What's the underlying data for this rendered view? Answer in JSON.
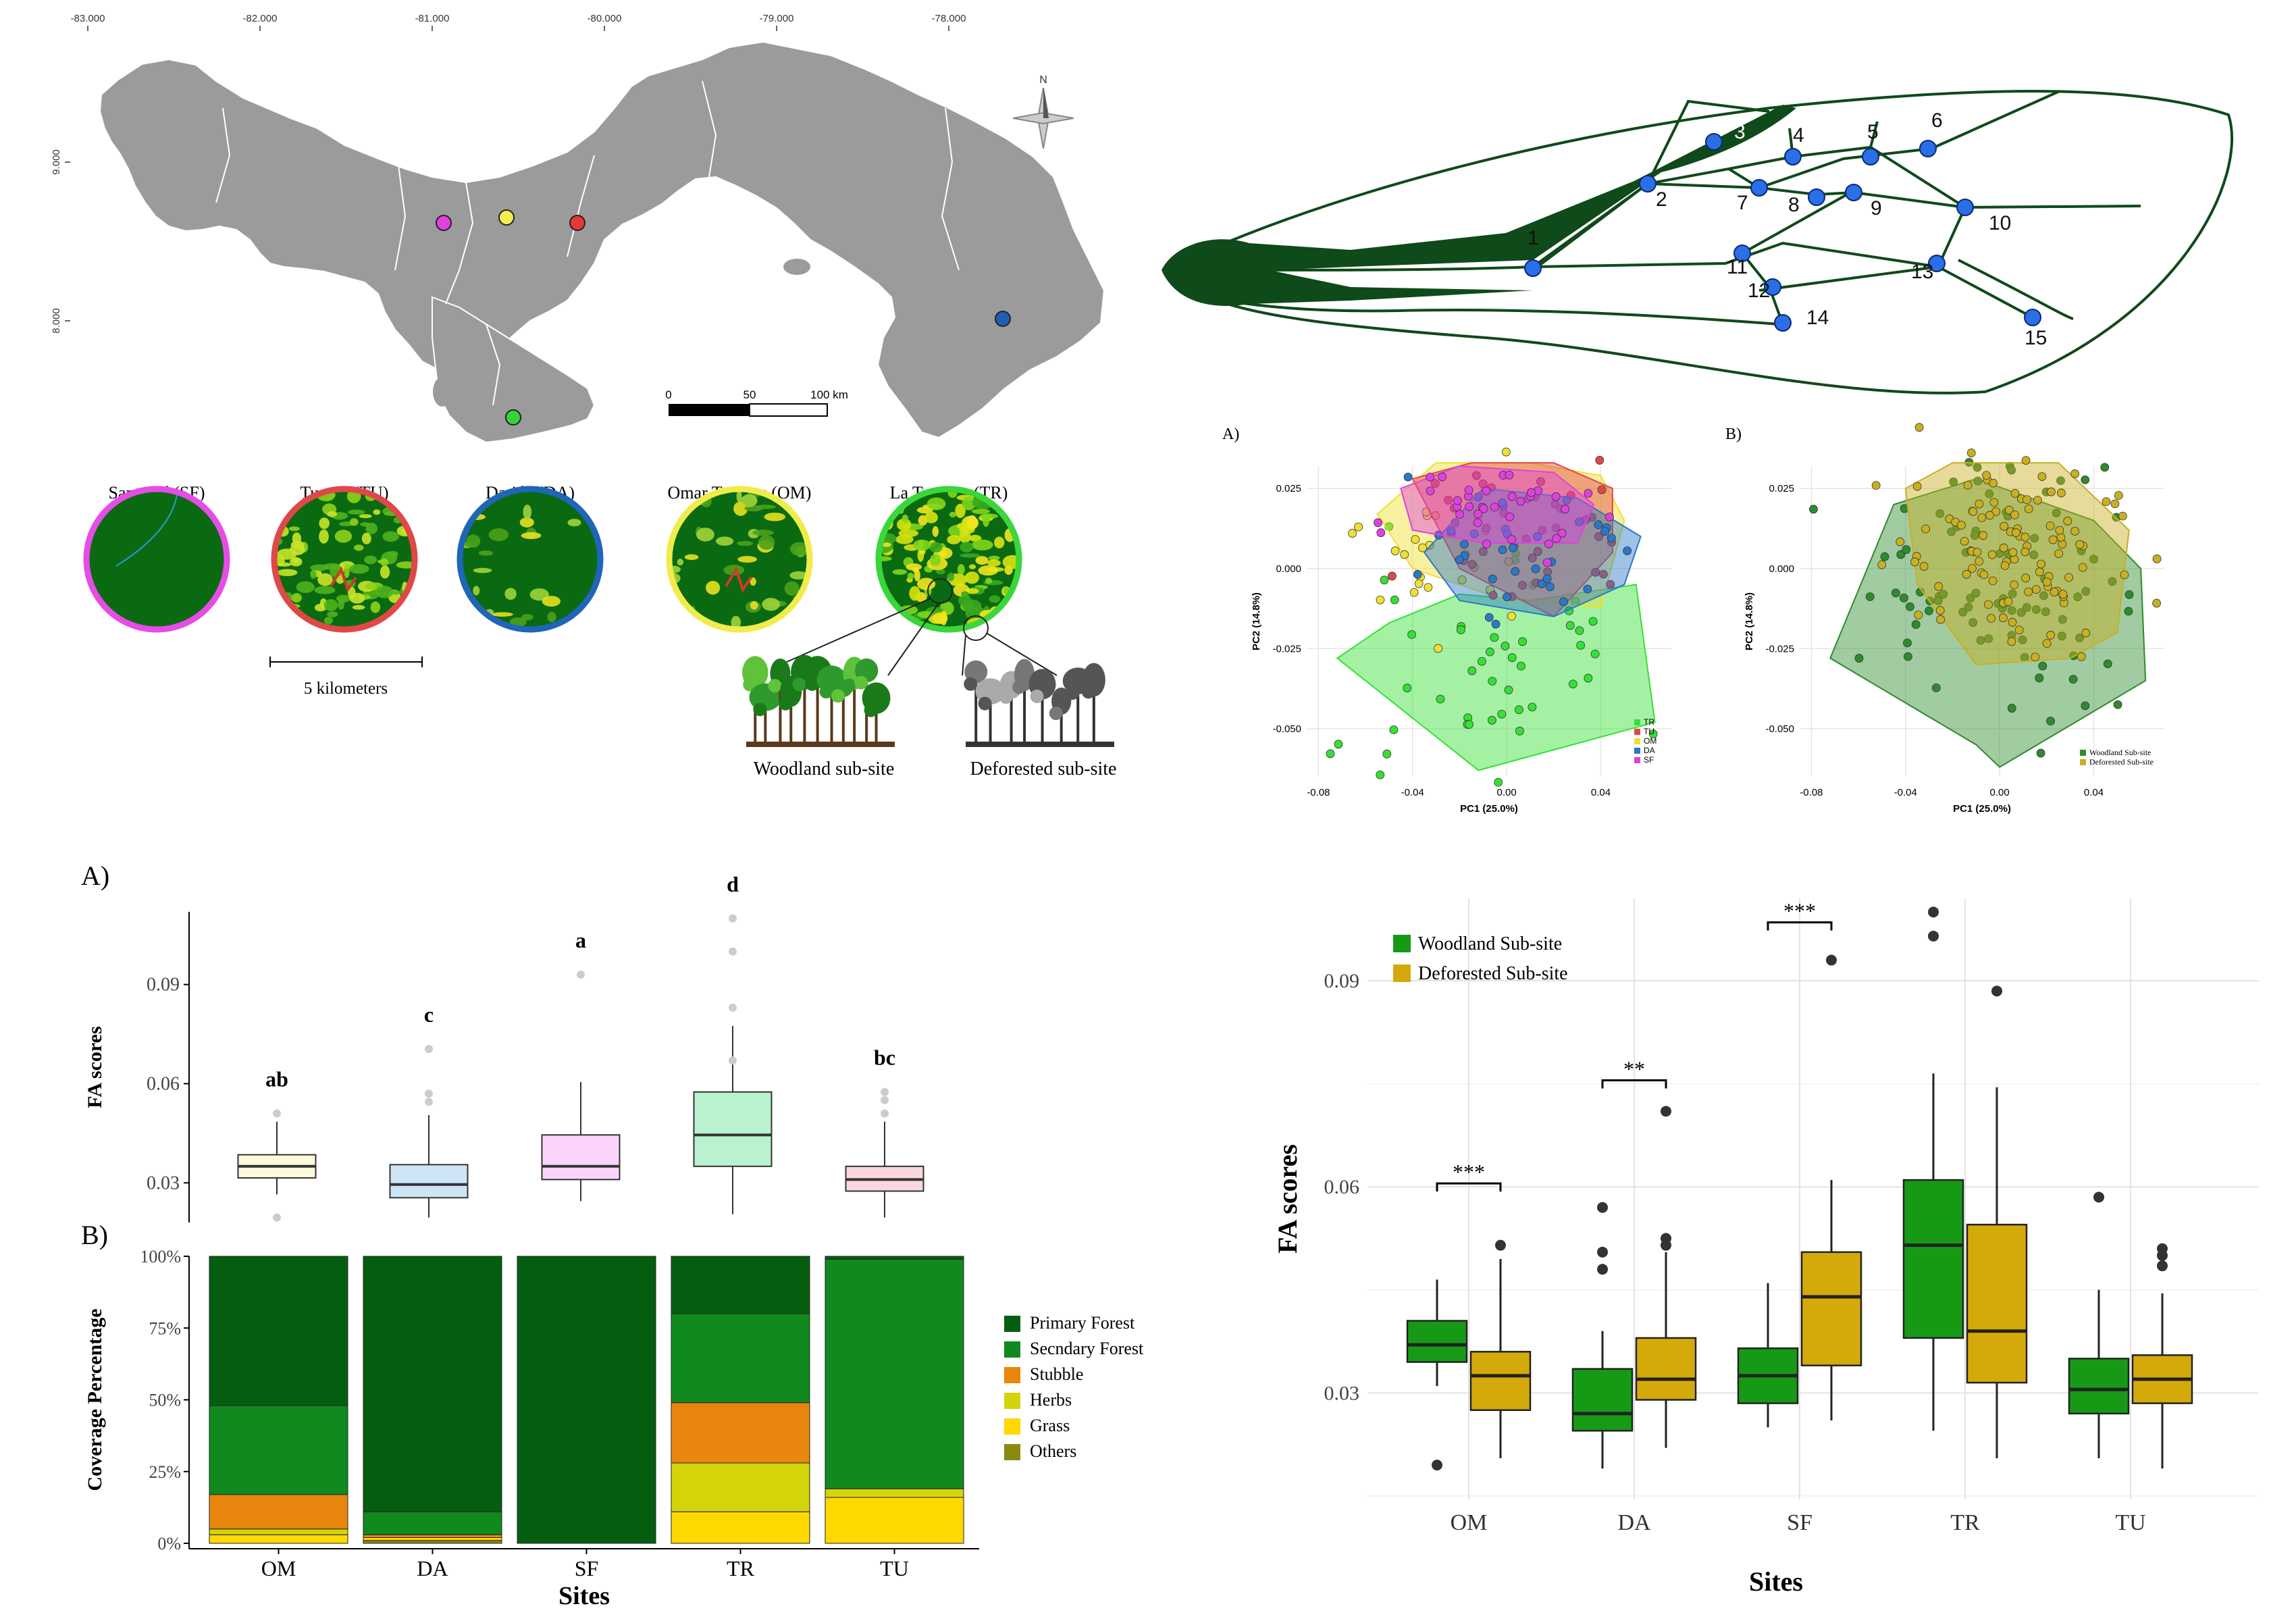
{
  "map": {
    "lon_ticks": [
      "-83.000",
      "-82.000",
      "-81.000",
      "-80.000",
      "-79.000",
      "-78.000"
    ],
    "lat_ticks": [
      "9.000",
      "8.000"
    ],
    "north_label": "N",
    "scale_labels": [
      "0",
      "50",
      "100 km"
    ],
    "sites": [
      {
        "label": "Santa Fé (SF)",
        "color": "#e040e0",
        "ring": "#e64ce6"
      },
      {
        "label": "Turega (TU)",
        "color": "#e53935",
        "ring": "#e04848"
      },
      {
        "label": "Darién (DA)",
        "color": "#1e5fb4",
        "ring": "#1f65b8"
      },
      {
        "label": "Omar Torrijos (OM)",
        "color": "#f2ee50",
        "ring": "#f0ec4a"
      },
      {
        "label": "La Tronosa (TR)",
        "color": "#35d435",
        "ring": "#3ad63a"
      }
    ],
    "scale_text": "5 kilometers",
    "woodland_label": "Woodland sub-site",
    "deforested_label": "Deforested sub-site"
  },
  "wing": {
    "landmarks": [
      "1",
      "2",
      "3",
      "4",
      "5",
      "6",
      "7",
      "8",
      "9",
      "10",
      "11",
      "12",
      "13",
      "14",
      "15"
    ],
    "landmark_color": "#2a6ee8",
    "vein_color": "#0f4a1a"
  },
  "pca": {
    "panelA_label": "A)",
    "panelB_label": "B)",
    "xlabel": "PC1 (25.0%)",
    "ylabel": "PC2 (14.8%)",
    "x_ticks": [
      "-0.08",
      "-0.04",
      "0.00",
      "0.04"
    ],
    "y_ticks": [
      "0.025",
      "0.000",
      "-0.025",
      "-0.050"
    ],
    "legendA": [
      {
        "name": "TR",
        "color": "#35e035"
      },
      {
        "name": "TU",
        "color": "#e04848"
      },
      {
        "name": "OM",
        "color": "#f0e030"
      },
      {
        "name": "DA",
        "color": "#2b78c8"
      },
      {
        "name": "SF",
        "color": "#e040e0"
      }
    ],
    "legendB": [
      {
        "name": "Woodland Sub-site",
        "color": "#2e8b2e"
      },
      {
        "name": "Deforested Sub-site",
        "color": "#c8b020"
      }
    ]
  },
  "chart_data": [
    {
      "type": "box",
      "panel_label": "A)",
      "ylabel": "FA scores",
      "ylim": [
        0.018,
        0.112
      ],
      "y_ticks": [
        0.03,
        0.06,
        0.09
      ],
      "y_tick_labels": [
        "0.03",
        "0.06",
        "0.09"
      ],
      "categories": [
        "OM",
        "DA",
        "SF",
        "TR",
        "TU"
      ],
      "boxes": [
        {
          "q1": 0.0315,
          "median": 0.035,
          "q3": 0.0385,
          "low": 0.0265,
          "high": 0.0485,
          "outliers": [
            0.051,
            0.0195
          ],
          "fill": "#fdfadc",
          "letter": "ab"
        },
        {
          "q1": 0.0255,
          "median": 0.0295,
          "q3": 0.0355,
          "low": 0.0195,
          "high": 0.0505,
          "outliers": [
            0.0545,
            0.057,
            0.0705
          ],
          "fill": "#cde5f7",
          "letter": "c"
        },
        {
          "q1": 0.031,
          "median": 0.035,
          "q3": 0.0445,
          "low": 0.0245,
          "high": 0.0605,
          "outliers": [
            0.093
          ],
          "fill": "#fad4fa",
          "letter": "a"
        },
        {
          "q1": 0.035,
          "median": 0.0445,
          "q3": 0.0575,
          "low": 0.0205,
          "high": 0.0775,
          "outliers": [
            0.067,
            0.083,
            0.1,
            0.11
          ],
          "fill": "#b8f2ce",
          "letter": "d"
        },
        {
          "q1": 0.0275,
          "median": 0.031,
          "q3": 0.035,
          "low": 0.0195,
          "high": 0.0485,
          "outliers": [
            0.051,
            0.055,
            0.0575
          ],
          "fill": "#fad7df",
          "letter": "bc"
        }
      ]
    },
    {
      "type": "bar",
      "stacked": true,
      "panel_label": "B)",
      "ylabel": "Coverage Percentage",
      "xlabel": "Sites",
      "y_tick_labels": [
        "0%",
        "25%",
        "50%",
        "75%",
        "100%"
      ],
      "categories": [
        "OM",
        "DA",
        "SF",
        "TR",
        "TU"
      ],
      "series": [
        {
          "name": "Others",
          "color": "#8a8a10",
          "values": [
            0,
            1,
            0,
            0,
            0
          ]
        },
        {
          "name": "Grass",
          "color": "#ffd800",
          "values": [
            3,
            1,
            0,
            11,
            16
          ]
        },
        {
          "name": "Herbs",
          "color": "#d4d40a",
          "values": [
            2,
            0,
            0,
            17,
            3
          ]
        },
        {
          "name": "Stubble",
          "color": "#e8860d",
          "values": [
            12,
            1,
            0,
            21,
            0
          ]
        },
        {
          "name": "Secndary Forest",
          "color": "#10891e",
          "values": [
            31,
            8,
            0,
            31,
            80
          ]
        },
        {
          "name": "Primary Forest",
          "color": "#055e10",
          "values": [
            52,
            89,
            100,
            20,
            1
          ]
        }
      ],
      "legend_order": [
        "Primary Forest",
        "Secndary Forest",
        "Stubble",
        "Herbs",
        "Grass",
        "Others"
      ]
    },
    {
      "type": "box",
      "grouped": true,
      "ylabel": "FA scores",
      "xlabel": "Sites",
      "ylim": [
        0.0145,
        0.102
      ],
      "y_ticks": [
        0.03,
        0.06,
        0.09
      ],
      "y_tick_labels": [
        "0.03",
        "0.06",
        "0.09"
      ],
      "categories": [
        "OM",
        "DA",
        "SF",
        "TR",
        "TU"
      ],
      "series": [
        {
          "name": "Woodland Sub-site",
          "color": "#169a16",
          "boxes": [
            {
              "q1": 0.0345,
              "median": 0.037,
              "q3": 0.0405,
              "low": 0.031,
              "high": 0.0465,
              "outliers": [
                0.0195
              ]
            },
            {
              "q1": 0.0245,
              "median": 0.027,
              "q3": 0.0335,
              "low": 0.019,
              "high": 0.039,
              "outliers": [
                0.048,
                0.0505,
                0.057
              ]
            },
            {
              "q1": 0.0285,
              "median": 0.0325,
              "q3": 0.0365,
              "low": 0.025,
              "high": 0.046,
              "outliers": []
            },
            {
              "q1": 0.038,
              "median": 0.0515,
              "q3": 0.061,
              "low": 0.0245,
              "high": 0.0765,
              "outliers": [
                0.0965,
                0.1
              ]
            },
            {
              "q1": 0.027,
              "median": 0.0305,
              "q3": 0.035,
              "low": 0.0205,
              "high": 0.045,
              "outliers": [
                0.0585
              ]
            }
          ]
        },
        {
          "name": "Deforested Sub-site",
          "color": "#d4aa0a",
          "boxes": [
            {
              "q1": 0.0275,
              "median": 0.0325,
              "q3": 0.036,
              "low": 0.0205,
              "high": 0.0495,
              "outliers": [
                0.0515
              ]
            },
            {
              "q1": 0.029,
              "median": 0.032,
              "q3": 0.038,
              "low": 0.022,
              "high": 0.0505,
              "outliers": [
                0.0515,
                0.0525,
                0.071
              ]
            },
            {
              "q1": 0.034,
              "median": 0.044,
              "q3": 0.0505,
              "low": 0.026,
              "high": 0.061,
              "outliers": [
                0.093
              ]
            },
            {
              "q1": 0.0315,
              "median": 0.039,
              "q3": 0.0545,
              "low": 0.0205,
              "high": 0.0745,
              "outliers": [
                0.0885
              ]
            },
            {
              "q1": 0.0285,
              "median": 0.032,
              "q3": 0.0355,
              "low": 0.019,
              "high": 0.0445,
              "outliers": [
                0.0485,
                0.05,
                0.051
              ]
            }
          ]
        }
      ],
      "significance": [
        {
          "site": "OM",
          "label": "***",
          "y": 0.0605
        },
        {
          "site": "DA",
          "label": "**",
          "y": 0.0755
        },
        {
          "site": "SF",
          "label": "***",
          "y": 0.0985
        }
      ]
    }
  ]
}
